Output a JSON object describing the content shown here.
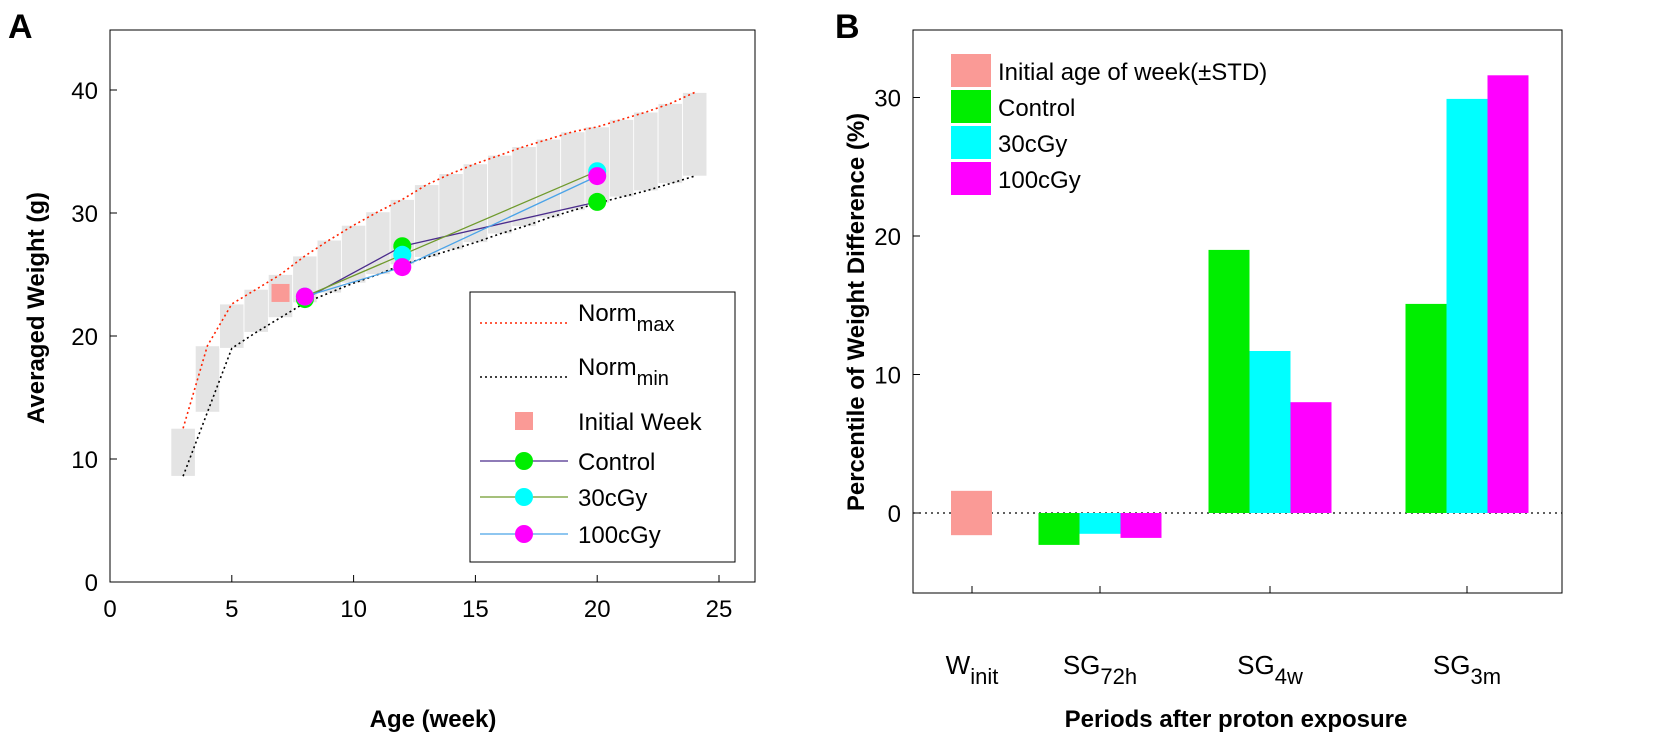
{
  "figure": {
    "panel_a_label": "A",
    "panel_b_label": "B"
  },
  "chart_data": [
    {
      "type": "line",
      "panel": "A",
      "title": "",
      "xlabel": "Age (week)",
      "ylabel": "Averaged Weight (g)",
      "xlim": [
        0,
        27
      ],
      "ylim": [
        0,
        45
      ],
      "xticks": [
        0,
        5,
        10,
        15,
        20,
        25
      ],
      "yticks": [
        0,
        10,
        20,
        30,
        40
      ],
      "grid": false,
      "legend_position": "bottom-right",
      "norm_band": {
        "x": [
          3,
          4,
          5,
          6,
          7,
          8,
          9,
          10,
          11,
          12,
          13,
          14,
          15,
          16,
          17,
          18,
          19,
          20,
          21,
          22,
          23,
          24
        ],
        "ymax": [
          12.5,
          19.2,
          22.6,
          23.8,
          25.0,
          26.5,
          27.8,
          29.0,
          30.1,
          31.1,
          32.3,
          33.2,
          34.0,
          34.7,
          35.4,
          36.0,
          36.6,
          37.0,
          37.6,
          38.2,
          38.9,
          39.8
        ],
        "ymin": [
          8.6,
          13.8,
          19.0,
          20.3,
          21.5,
          22.7,
          23.5,
          24.3,
          25.0,
          25.8,
          26.4,
          27.0,
          27.6,
          28.3,
          28.9,
          29.6,
          30.2,
          30.8,
          31.3,
          31.8,
          32.4,
          33.0
        ]
      },
      "series": [
        {
          "name": "Norm",
          "sub": "max",
          "style": "dotted",
          "color": "#ff2200",
          "x": [
            3,
            4,
            5,
            6,
            7,
            8,
            9,
            10,
            11,
            12,
            13,
            14,
            15,
            16,
            17,
            18,
            19,
            20,
            21,
            22,
            23,
            24
          ],
          "y": [
            12.5,
            19.2,
            22.6,
            23.8,
            25.0,
            26.5,
            27.8,
            29.0,
            30.1,
            31.1,
            32.3,
            33.2,
            34.0,
            34.7,
            35.4,
            36.0,
            36.6,
            37.0,
            37.6,
            38.2,
            38.9,
            39.8
          ]
        },
        {
          "name": "Norm",
          "sub": "min",
          "style": "dotted",
          "color": "#000000",
          "x": [
            3,
            4,
            5,
            6,
            7,
            8,
            9,
            10,
            11,
            12,
            13,
            14,
            15,
            16,
            17,
            18,
            19,
            20,
            21,
            22,
            23,
            24
          ],
          "y": [
            8.6,
            13.8,
            19.0,
            20.3,
            21.5,
            22.7,
            23.5,
            24.3,
            25.0,
            25.8,
            26.4,
            27.0,
            27.6,
            28.3,
            28.9,
            29.6,
            30.2,
            30.8,
            31.3,
            31.8,
            32.4,
            33.0
          ]
        },
        {
          "name": "Initial Week",
          "style": "square",
          "color": "#fa9a96",
          "x": [
            7
          ],
          "y": [
            23.5
          ]
        },
        {
          "name": "Control",
          "style": "line-marker",
          "line_color": "#4b2c8c",
          "marker_color": "#00ee00",
          "x": [
            8,
            12,
            20
          ],
          "y": [
            23.0,
            27.3,
            30.9
          ]
        },
        {
          "name": "30cGy",
          "style": "line-marker",
          "line_color": "#6f9a2c",
          "marker_color": "#00ffff",
          "x": [
            8,
            12,
            20
          ],
          "y": [
            23.2,
            26.6,
            33.4
          ]
        },
        {
          "name": "100cGy",
          "style": "line-marker",
          "line_color": "#4aa3e8",
          "marker_color": "#ff00ff",
          "x": [
            8,
            12,
            20
          ],
          "y": [
            23.2,
            25.6,
            33.0
          ]
        }
      ]
    },
    {
      "type": "bar",
      "panel": "B",
      "title": "",
      "xlabel": "Periods after proton exposure",
      "ylabel": "Percentile of Weight Difference (%)",
      "ylim": [
        -5.5,
        35
      ],
      "yticks": [
        0,
        10,
        20,
        30
      ],
      "grid": false,
      "legend_position": "top-left",
      "categories": [
        {
          "main": "W",
          "sub": "init"
        },
        {
          "main": "SG",
          "sub": "72h"
        },
        {
          "main": "SG",
          "sub": "4w"
        },
        {
          "main": "SG",
          "sub": "3m"
        }
      ],
      "initial": {
        "name": "Initial age of week(±STD)",
        "color": "#fa9a96",
        "low": -1.6,
        "high": 1.6
      },
      "series": [
        {
          "name": "Control",
          "color": "#00ee00",
          "values": [
            null,
            -2.3,
            19.0,
            15.1
          ]
        },
        {
          "name": "30cGy",
          "color": "#00ffff",
          "values": [
            null,
            -1.5,
            11.7,
            29.9
          ]
        },
        {
          "name": "100cGy",
          "color": "#ff00ff",
          "values": [
            null,
            -1.8,
            8.0,
            31.6
          ]
        }
      ]
    }
  ]
}
